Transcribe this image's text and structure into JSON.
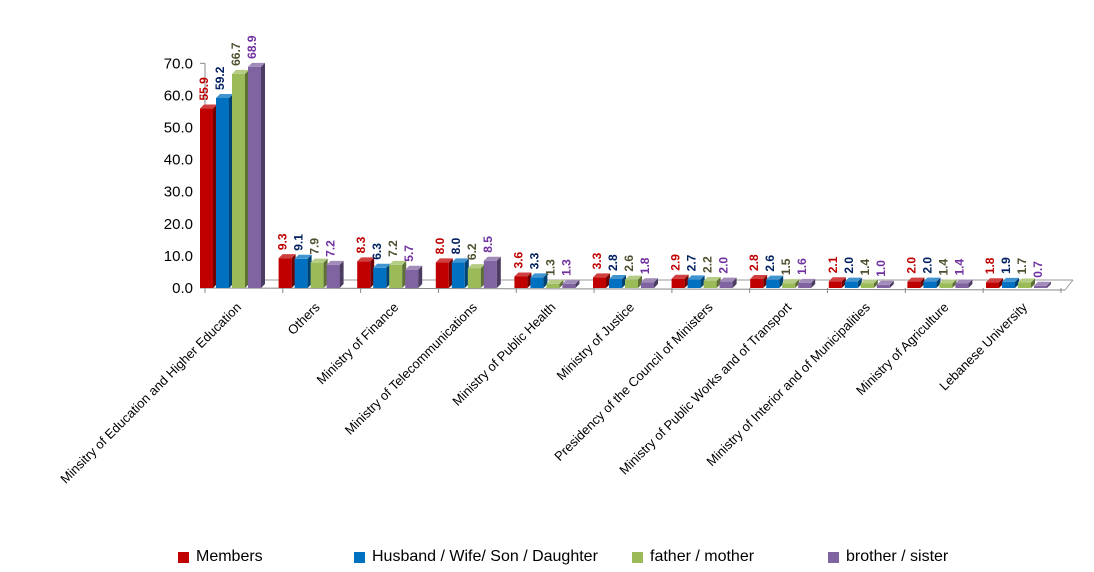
{
  "chart_data": {
    "type": "bar",
    "categories": [
      "Minsitry of Education and Higher Education",
      "Others",
      "Ministry of Finance",
      "Ministry of Telecommunications",
      "Ministry of Public Health",
      "Ministry of Justice",
      "Presidency of the Council of Ministers",
      "Ministry of Public Works and of Transport",
      "Ministry of Interior and of Municipalities",
      "Ministry of Agriculture",
      "Lebanese University"
    ],
    "series": [
      {
        "name": "Members",
        "color": "#c00000",
        "values": [
          55.9,
          9.3,
          8.3,
          8.0,
          3.6,
          3.3,
          2.9,
          2.8,
          2.1,
          2.0,
          1.8
        ],
        "labels": [
          "55.9",
          "9.3",
          "8.3",
          "8.0",
          "3.6",
          "3.3",
          "2.9",
          "2.8",
          "2.1",
          "2.0",
          "1.8"
        ]
      },
      {
        "name": "Husband / Wife/ Son / Daughter",
        "color": "#0070c0",
        "values": [
          59.2,
          9.1,
          6.3,
          8.0,
          3.3,
          2.8,
          2.7,
          2.6,
          2.0,
          2.0,
          1.9
        ],
        "labels": [
          "59.2",
          "9.1",
          "6.3",
          "8.0",
          "3.3",
          "2.8",
          "2.7",
          "2.6",
          "2.0",
          "2.0",
          "1.9"
        ]
      },
      {
        "name": "father / mother",
        "color": "#9bbb59",
        "values": [
          66.7,
          7.9,
          7.2,
          6.2,
          1.3,
          2.6,
          2.2,
          1.5,
          1.4,
          1.4,
          1.7
        ],
        "labels": [
          "66.7",
          "7.9",
          "7.2",
          "6.2",
          "1.3",
          "2.6",
          "2.2",
          "1.5",
          "1.4",
          "1.4",
          "1.7"
        ]
      },
      {
        "name": "brother / sister",
        "color": "#8064a2",
        "values": [
          68.9,
          7.2,
          5.7,
          8.5,
          1.3,
          1.8,
          2.0,
          1.6,
          1.0,
          1.4,
          0.7
        ],
        "labels": [
          "68.9",
          "7.2",
          "5.7",
          "8.5",
          "1.3",
          "1.8",
          "2.0",
          "1.6",
          "1.0",
          "1.4",
          "0.7"
        ]
      }
    ],
    "label_colors": [
      "#c00000",
      "#002060",
      "#4f4f2f",
      "#7030a0"
    ],
    "yticks": [
      "0.0",
      "10.0",
      "20.0",
      "30.0",
      "40.0",
      "50.0",
      "60.0",
      "70.0"
    ],
    "ylim": [
      0,
      70
    ],
    "legend_position": "bottom",
    "grid": false
  }
}
